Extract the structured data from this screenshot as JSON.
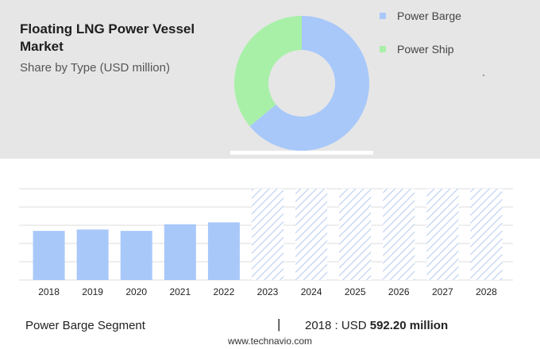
{
  "title": "Floating LNG Power Vessel Market",
  "subtitle": "Share by Type (USD million)",
  "legend": [
    {
      "label": "Power Barge",
      "color": "#a8c8fa"
    },
    {
      "label": "Power Ship",
      "color": "#a8f0a8"
    }
  ],
  "footer": {
    "segment": "Power Barge Segment",
    "separator": "|",
    "year_label": "2018",
    "colon": ":",
    "currency": "USD",
    "amount": "592.20 million"
  },
  "source": "www.technavio.com",
  "chart_data": [
    {
      "type": "pie",
      "subtype": "donut",
      "categories": [
        "Power Barge",
        "Power Ship"
      ],
      "values": [
        64,
        36
      ],
      "colors": [
        "#a8c8fa",
        "#a8f0a8"
      ]
    },
    {
      "type": "bar",
      "categories": [
        "2018",
        "2019",
        "2020",
        "2021",
        "2022",
        "2023",
        "2024",
        "2025",
        "2026",
        "2027",
        "2028"
      ],
      "series": [
        {
          "values": [
            592.2,
            609,
            592,
            672,
            695,
            null,
            null,
            null,
            null,
            null,
            null
          ],
          "color": "#a8c8fa"
        }
      ],
      "forecast_categories": [
        "2023",
        "2024",
        "2025",
        "2026",
        "2027",
        "2028"
      ],
      "forecast_style": "hatched",
      "ylim": [
        0,
        1100
      ],
      "grid": true
    }
  ]
}
